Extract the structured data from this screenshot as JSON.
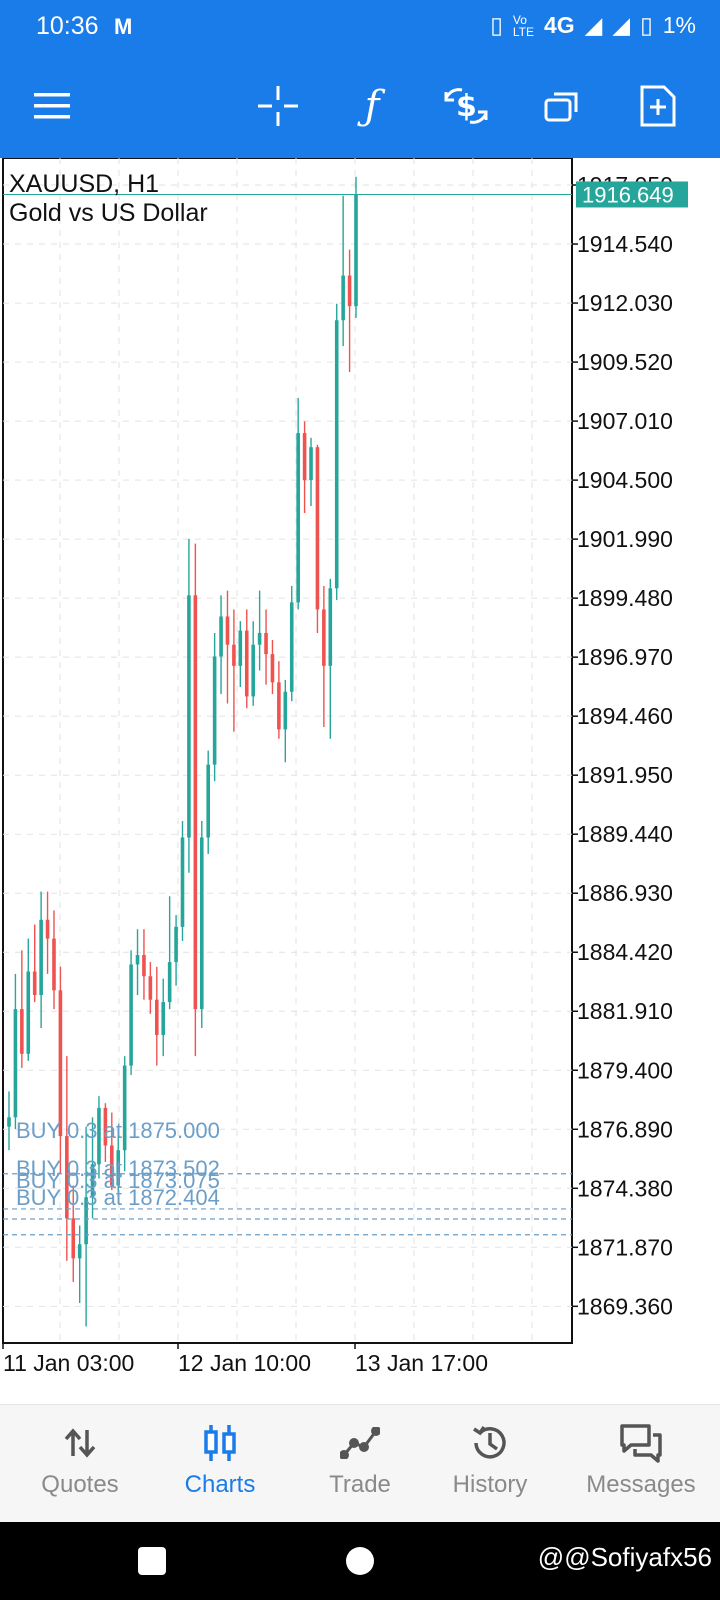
{
  "status_bar": {
    "time": "10:36",
    "gmail_icon": "M",
    "network": "4G",
    "battery": "1%"
  },
  "toolbar": {
    "menu_icon": "hamburger-icon",
    "items": [
      "crosshair-icon",
      "indicators-icon",
      "new-order-icon",
      "windows-icon",
      "template-icon"
    ],
    "indicators_glyph": "ƒ"
  },
  "chart": {
    "symbol": "XAUUSD, H1",
    "description": "Gold vs US Dollar",
    "current_price": "1916.649",
    "price_axis": [
      "1917.050",
      "1914.540",
      "1912.030",
      "1909.520",
      "1907.010",
      "1904.500",
      "1901.990",
      "1899.480",
      "1896.970",
      "1894.460",
      "1891.950",
      "1889.440",
      "1886.930",
      "1884.420",
      "1881.910",
      "1879.400",
      "1876.890",
      "1874.380",
      "1871.870",
      "1869.360"
    ],
    "time_axis": [
      "11 Jan 03:00",
      "12 Jan 10:00",
      "13 Jan 17:00"
    ],
    "orders": [
      {
        "label": "BUY 0.3 at 1875.000",
        "price": 1875.0
      },
      {
        "label": "BUY 0.3 at 1873.502",
        "price": 1873.502
      },
      {
        "label": "BUY 0.3 at 1873.075",
        "price": 1873.075
      },
      {
        "label": "BUY 0.3 at 1872.404",
        "price": 1872.404
      }
    ],
    "colors": {
      "bull": "#26a69a",
      "bear": "#ef5350",
      "order": "#6b9ec9",
      "bid_box": "#26a69a"
    }
  },
  "chart_data": {
    "type": "candlestick",
    "title": "XAUUSD, H1",
    "subtitle": "Gold vs US Dollar",
    "ylim": [
      1867.8,
      1918.2
    ],
    "candles": [
      [
        1877.0,
        1878.5,
        1876.0,
        1877.4
      ],
      [
        1877.4,
        1883.5,
        1876.9,
        1882.0
      ],
      [
        1882.0,
        1884.5,
        1879.5,
        1880.1
      ],
      [
        1880.1,
        1885.0,
        1879.8,
        1883.6
      ],
      [
        1883.6,
        1885.6,
        1882.3,
        1882.6
      ],
      [
        1882.6,
        1887.0,
        1881.2,
        1885.8
      ],
      [
        1885.8,
        1887.0,
        1883.5,
        1885.0
      ],
      [
        1885.0,
        1886.2,
        1882.0,
        1882.8
      ],
      [
        1882.8,
        1883.8,
        1875.0,
        1876.6
      ],
      [
        1876.6,
        1880.0,
        1871.3,
        1873.1
      ],
      [
        1873.1,
        1874.5,
        1870.4,
        1871.4
      ],
      [
        1871.4,
        1872.8,
        1869.5,
        1872.0
      ],
      [
        1872.0,
        1877.0,
        1868.5,
        1874.0
      ],
      [
        1874.0,
        1877.4,
        1873.1,
        1875.4
      ],
      [
        1875.4,
        1878.3,
        1874.8,
        1877.8
      ],
      [
        1877.8,
        1878.0,
        1875.5,
        1876.2
      ],
      [
        1876.2,
        1877.6,
        1874.3,
        1874.5
      ],
      [
        1874.5,
        1877.0,
        1874.0,
        1876.0
      ],
      [
        1876.0,
        1880.0,
        1875.1,
        1879.6
      ],
      [
        1879.6,
        1884.5,
        1879.2,
        1883.9
      ],
      [
        1883.9,
        1885.4,
        1882.6,
        1884.3
      ],
      [
        1884.3,
        1885.4,
        1882.4,
        1883.4
      ],
      [
        1883.4,
        1884.0,
        1881.8,
        1882.4
      ],
      [
        1882.4,
        1883.8,
        1879.6,
        1880.9
      ],
      [
        1880.9,
        1883.3,
        1880.0,
        1882.3
      ],
      [
        1882.3,
        1886.8,
        1882.0,
        1884.0
      ],
      [
        1884.0,
        1886.0,
        1883.0,
        1885.5
      ],
      [
        1885.5,
        1890.0,
        1884.9,
        1889.3
      ],
      [
        1889.3,
        1902.0,
        1887.8,
        1899.6
      ],
      [
        1899.6,
        1901.8,
        1880.0,
        1882.0
      ],
      [
        1882.0,
        1890.0,
        1881.2,
        1889.3
      ],
      [
        1889.3,
        1893.0,
        1888.6,
        1892.4
      ],
      [
        1892.4,
        1898.0,
        1891.7,
        1897.0
      ],
      [
        1897.0,
        1899.6,
        1895.4,
        1898.7
      ],
      [
        1898.7,
        1899.8,
        1895.0,
        1897.5
      ],
      [
        1897.5,
        1899.0,
        1893.8,
        1896.6
      ],
      [
        1896.6,
        1898.5,
        1895.7,
        1898.1
      ],
      [
        1898.1,
        1899.0,
        1894.8,
        1895.3
      ],
      [
        1895.3,
        1898.5,
        1894.9,
        1897.5
      ],
      [
        1897.5,
        1899.8,
        1896.4,
        1898.0
      ],
      [
        1898.0,
        1899.0,
        1895.8,
        1897.1
      ],
      [
        1897.1,
        1897.7,
        1895.4,
        1895.9
      ],
      [
        1895.9,
        1896.8,
        1893.5,
        1893.9
      ],
      [
        1893.9,
        1896.0,
        1892.5,
        1895.5
      ],
      [
        1895.5,
        1900.0,
        1895.1,
        1899.3
      ],
      [
        1899.3,
        1908.0,
        1899.0,
        1906.5
      ],
      [
        1906.5,
        1907.0,
        1903.1,
        1904.5
      ],
      [
        1904.5,
        1906.3,
        1903.4,
        1905.9
      ],
      [
        1905.9,
        1906.0,
        1898.0,
        1899.0
      ],
      [
        1899.0,
        1900.0,
        1894.0,
        1896.6
      ],
      [
        1896.6,
        1900.3,
        1893.5,
        1899.9
      ],
      [
        1899.9,
        1912.0,
        1899.4,
        1911.3
      ],
      [
        1911.3,
        1916.6,
        1910.2,
        1913.2
      ],
      [
        1913.2,
        1914.3,
        1909.1,
        1911.9
      ],
      [
        1911.9,
        1917.4,
        1911.4,
        1916.649
      ]
    ],
    "price_ticks": [
      1917.05,
      1914.54,
      1912.03,
      1909.52,
      1907.01,
      1904.5,
      1901.99,
      1899.48,
      1896.97,
      1894.46,
      1891.95,
      1889.44,
      1886.93,
      1884.42,
      1881.91,
      1879.4,
      1876.89,
      1874.38,
      1871.87,
      1869.36
    ],
    "time_ticks": [
      "11 Jan 03:00",
      "12 Jan 10:00",
      "13 Jan 17:00"
    ],
    "grid": true
  },
  "bottom_nav": {
    "items": [
      {
        "label": "Quotes",
        "icon": "quotes-icon",
        "active": false
      },
      {
        "label": "Charts",
        "icon": "charts-icon",
        "active": true
      },
      {
        "label": "Trade",
        "icon": "trade-icon",
        "active": false
      },
      {
        "label": "History",
        "icon": "history-icon",
        "active": false
      },
      {
        "label": "Messages",
        "icon": "messages-icon",
        "active": false
      }
    ]
  },
  "watermark": "@@Sofiyafx56"
}
